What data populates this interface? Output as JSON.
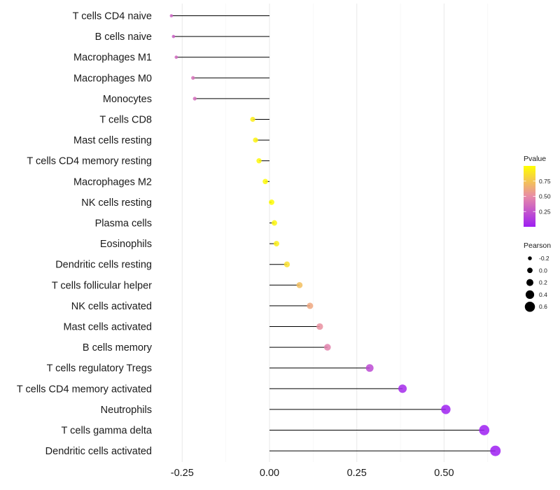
{
  "chart_data": {
    "type": "lollipop",
    "title": "",
    "xlabel": "",
    "ylabel": "",
    "xlim": [
      -0.3,
      0.66
    ],
    "x_ticks": [
      {
        "value": -0.25,
        "label": "-0.25"
      },
      {
        "value": 0.0,
        "label": "0.00"
      },
      {
        "value": 0.25,
        "label": "0.25"
      },
      {
        "value": 0.5,
        "label": "0.50"
      }
    ],
    "minor_grid": [
      -0.125,
      0.125,
      0.375,
      0.625
    ],
    "grid": true,
    "categories": [
      "T cells CD4 naive",
      "B cells naive",
      "Macrophages M1",
      "Macrophages M0",
      "Monocytes",
      "T cells CD8",
      "Mast cells resting",
      "T cells CD4 memory resting",
      "Macrophages M2",
      "NK cells resting",
      "Plasma cells",
      "Eosinophils",
      "Dendritic cells resting",
      "T cells follicular helper",
      "NK cells activated",
      "Mast cells activated",
      "B cells memory",
      "T cells regulatory  Tregs ",
      "T cells CD4 memory activated",
      "Neutrophils",
      "T cells gamma delta",
      "Dendritic cells activated"
    ],
    "pearson": [
      -0.281,
      -0.275,
      -0.267,
      -0.219,
      -0.214,
      -0.048,
      -0.04,
      -0.03,
      -0.012,
      0.006,
      0.014,
      0.02,
      0.05,
      0.086,
      0.116,
      0.144,
      0.166,
      0.287,
      0.381,
      0.505,
      0.615,
      0.647
    ],
    "pvalue": [
      0.32,
      0.3,
      0.34,
      0.38,
      0.36,
      0.92,
      0.95,
      0.97,
      0.98,
      0.99,
      0.96,
      0.93,
      0.86,
      0.72,
      0.62,
      0.52,
      0.46,
      0.2,
      0.05,
      0.01,
      0.001,
      0.001
    ],
    "legend_color": {
      "title": "Pvalue",
      "ticks": [
        {
          "value": 0.25,
          "label": "0.25"
        },
        {
          "value": 0.5,
          "label": "0.50"
        },
        {
          "value": 0.75,
          "label": "0.75"
        }
      ],
      "range": [
        0.0,
        1.0
      ],
      "low_color": "#9e1ff2",
      "mid_color": "#e88ba7",
      "high_color": "#ffff00",
      "placement": "right"
    },
    "legend_size": {
      "title": "Pearson",
      "entries": [
        {
          "value": -0.2,
          "label": "-0.2"
        },
        {
          "value": 0.0,
          "label": "0.0"
        },
        {
          "value": 0.2,
          "label": "0.2"
        },
        {
          "value": 0.4,
          "label": "0.4"
        },
        {
          "value": 0.6,
          "label": "0.6"
        }
      ],
      "placement": "right"
    }
  }
}
